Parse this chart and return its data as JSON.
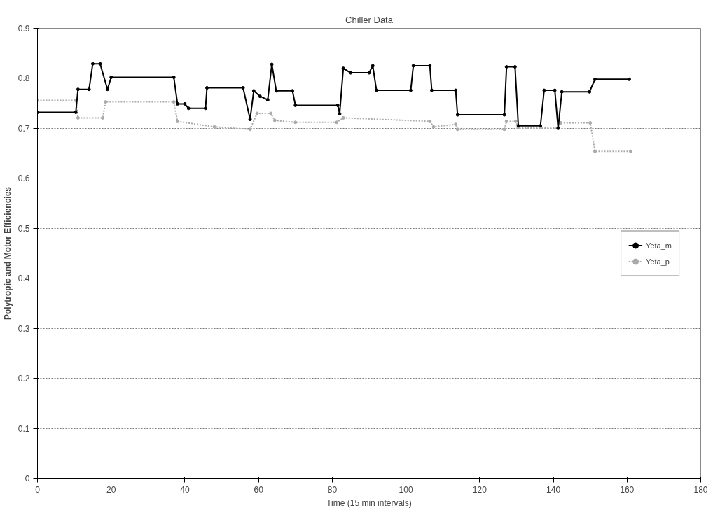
{
  "chart_data": {
    "type": "line",
    "title": "Chiller Data",
    "xlabel": "Time (15 min intervals)",
    "ylabel": "Polytropic and Motor Efficiencies",
    "xlim": [
      0,
      180
    ],
    "xticks": [
      0,
      20,
      40,
      60,
      80,
      100,
      120,
      140,
      160,
      180
    ],
    "ylim": [
      0,
      0.9
    ],
    "yticks": [
      0,
      0.1,
      0.2,
      0.3,
      0.4,
      0.5,
      0.6,
      0.7,
      0.8,
      0.9
    ],
    "grid": "y",
    "legend": "right",
    "marker": "circle",
    "series": [
      {
        "name": "Yeta_m",
        "color": "#000000",
        "line_style": "solid",
        "x": [
          0,
          10.4,
          11,
          14,
          15,
          17,
          19,
          20,
          37,
          38,
          40,
          41,
          45.6,
          46,
          55.8,
          57.7,
          58.7,
          60.4,
          62.5,
          63.6,
          64.8,
          69.2,
          70,
          81.5,
          82,
          83,
          85,
          90,
          91,
          92,
          101.3,
          102,
          106.5,
          107,
          113.5,
          114,
          126.7,
          127.3,
          129.6,
          130.5,
          136.5,
          137.5,
          140.4,
          141.3,
          142.3,
          149.8,
          151.3,
          160.6
        ],
        "values": [
          0.732,
          0.732,
          0.778,
          0.778,
          0.829,
          0.829,
          0.778,
          0.802,
          0.802,
          0.749,
          0.749,
          0.74,
          0.74,
          0.781,
          0.781,
          0.718,
          0.775,
          0.764,
          0.757,
          0.828,
          0.775,
          0.775,
          0.746,
          0.746,
          0.729,
          0.82,
          0.811,
          0.811,
          0.825,
          0.776,
          0.776,
          0.825,
          0.825,
          0.776,
          0.776,
          0.727,
          0.727,
          0.823,
          0.823,
          0.705,
          0.705,
          0.776,
          0.776,
          0.7,
          0.773,
          0.773,
          0.798,
          0.798
        ]
      },
      {
        "name": "Yeta_p",
        "color": "#aaaaaa",
        "line_style": "dotted",
        "x": [
          0,
          10.4,
          11,
          17.7,
          18.5,
          37,
          38,
          48,
          57.7,
          59.6,
          63.3,
          64.4,
          70,
          81.2,
          83,
          106.5,
          107.5,
          113.5,
          114,
          126.7,
          127.3,
          129.8,
          130.5,
          141.3,
          142,
          150,
          151.3,
          161
        ],
        "values": [
          0.756,
          0.756,
          0.721,
          0.721,
          0.753,
          0.753,
          0.714,
          0.703,
          0.698,
          0.73,
          0.73,
          0.716,
          0.712,
          0.712,
          0.721,
          0.714,
          0.703,
          0.708,
          0.698,
          0.698,
          0.714,
          0.714,
          0.701,
          0.701,
          0.711,
          0.711,
          0.654,
          0.654
        ]
      }
    ]
  }
}
